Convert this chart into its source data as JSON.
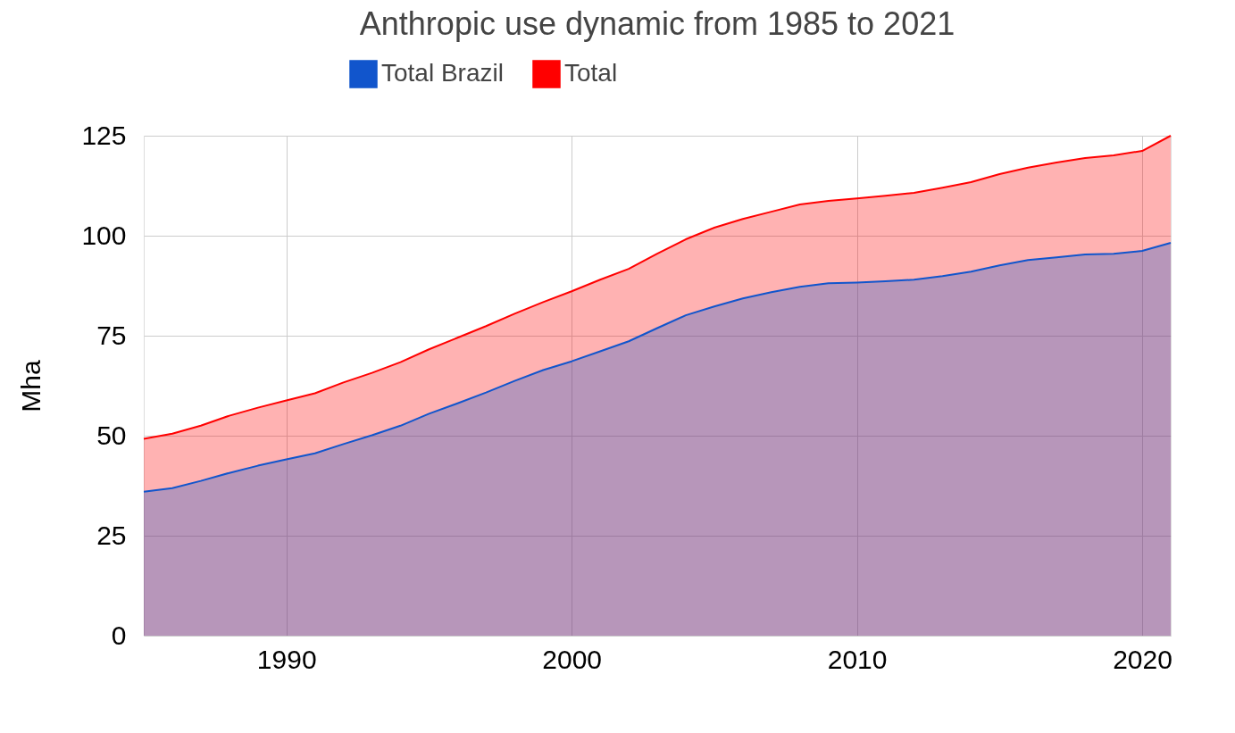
{
  "chart_data": {
    "type": "area",
    "title": "Anthropic use dynamic from 1985 to 2021",
    "ylabel": "Mha",
    "x": [
      1985,
      1986,
      1987,
      1988,
      1989,
      1990,
      1991,
      1992,
      1993,
      1994,
      1995,
      1996,
      1997,
      1998,
      1999,
      2000,
      2001,
      2002,
      2003,
      2004,
      2005,
      2006,
      2007,
      2008,
      2009,
      2010,
      2011,
      2012,
      2013,
      2014,
      2015,
      2016,
      2017,
      2018,
      2019,
      2020,
      2021
    ],
    "series": [
      {
        "name": "Total Brazil",
        "color": "#1155cc",
        "values": [
          36.0,
          36.9,
          38.7,
          40.7,
          42.5,
          44.1,
          45.6,
          47.9,
          50.1,
          52.5,
          55.5,
          58.1,
          60.8,
          63.7,
          66.4,
          68.6,
          71.1,
          73.6,
          76.9,
          80.1,
          82.3,
          84.3,
          85.9,
          87.2,
          88.1,
          88.3,
          88.6,
          89.0,
          89.9,
          91.0,
          92.6,
          93.9,
          94.6,
          95.3,
          95.5,
          96.2,
          98.2
        ]
      },
      {
        "name": "Total",
        "color": "#ff0000",
        "values": [
          49.2,
          50.5,
          52.5,
          55.0,
          57.0,
          58.8,
          60.6,
          63.3,
          65.7,
          68.4,
          71.6,
          74.5,
          77.4,
          80.5,
          83.4,
          86.1,
          89.0,
          91.7,
          95.5,
          99.1,
          102.0,
          104.2,
          106.0,
          107.8,
          108.7,
          109.3,
          110.0,
          110.7,
          112.0,
          113.4,
          115.4,
          117.0,
          118.3,
          119.4,
          120.1,
          121.2,
          125.0
        ]
      }
    ],
    "xlim": [
      1985,
      2021
    ],
    "xticks": [
      1990,
      2000,
      2010,
      2020
    ],
    "ylim": [
      0,
      125
    ],
    "yticks": [
      0,
      25,
      50,
      75,
      100,
      125
    ],
    "grid": true,
    "legend": "top"
  }
}
